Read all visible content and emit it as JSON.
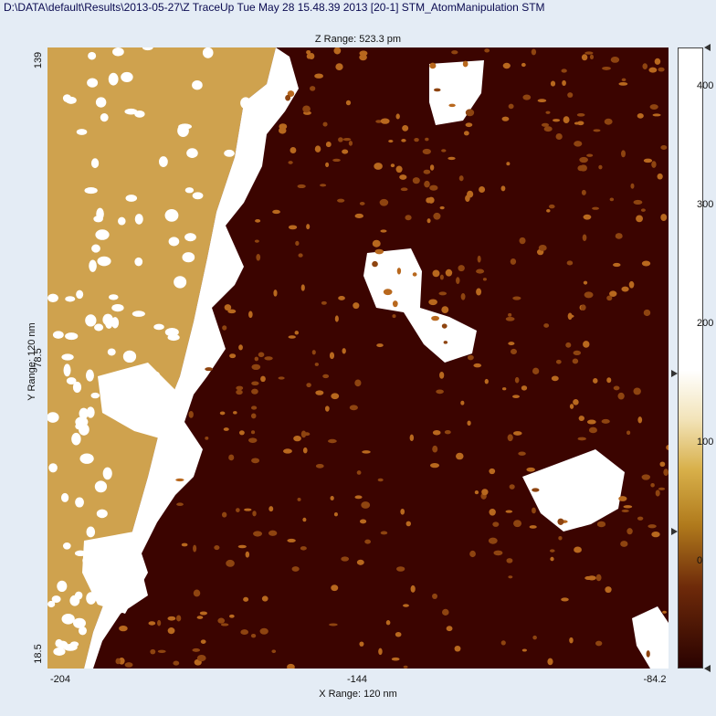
{
  "window_title": "D:\\DATA\\default\\Results\\2013-05-27\\Z TraceUp Tue May 28 15.48.39 2013 [20-1]  STM_AtomManipulation STM",
  "z_range": "Z Range:  523.3 pm",
  "y_range_label": "Y Range: 120 nm",
  "x_range_label": "X Range: 120 nm",
  "y_ticks": [
    "139",
    "78.5",
    "18.5"
  ],
  "x_ticks": [
    "-204",
    "-144",
    "-84.2"
  ],
  "colorbar_ticks": [
    "400",
    "300",
    "200",
    "100",
    "0"
  ],
  "colors": {
    "background": "#e4ecf5",
    "terrace_upper": "#cfa24e",
    "terrace_lower": "#3b0400",
    "island": "#ffffff",
    "adatom": "#b8681e"
  },
  "image_description_elements": [
    "upper-terrace",
    "step-edge",
    "islands",
    "adatoms"
  ]
}
